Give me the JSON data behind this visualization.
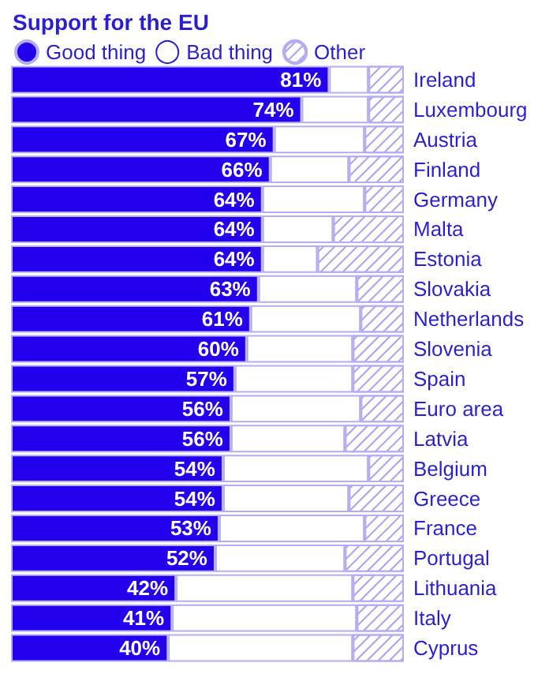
{
  "chart_data": {
    "type": "bar",
    "orientation": "horizontal",
    "stacked": true,
    "title": "Support for the EU",
    "legend": "top left",
    "tick_labels": "y",
    "categories": [
      "Ireland",
      "Luxembourg",
      "Austria",
      "Finland",
      "Germany",
      "Malta",
      "Estonia",
      "Slovakia",
      "Netherlands",
      "Slovenia",
      "Spain",
      "Euro area",
      "Latvia",
      "Belgium",
      "Greece",
      "France",
      "Portugal",
      "Lithuania",
      "Italy",
      "Cyprus"
    ],
    "xlim": [
      0,
      100
    ],
    "series": [
      {
        "name": "Good thing",
        "color": "#2200ee",
        "values": [
          81,
          74,
          67,
          66,
          64,
          64,
          64,
          63,
          61,
          60,
          57,
          56,
          56,
          54,
          54,
          53,
          52,
          42,
          41,
          40
        ],
        "value_labels": [
          "81%",
          "74%",
          "67%",
          "66%",
          "64%",
          "64%",
          "64%",
          "63%",
          "61%",
          "60%",
          "57%",
          "56%",
          "56%",
          "54%",
          "54%",
          "53%",
          "52%",
          "42%",
          "41%",
          "40%"
        ]
      },
      {
        "name": "Bad thing",
        "color": "#ffffff",
        "values": [
          10,
          17,
          23,
          20,
          26,
          18,
          14,
          25,
          28,
          27,
          30,
          33,
          29,
          37,
          32,
          37,
          33,
          45,
          47,
          47
        ]
      },
      {
        "name": "Other",
        "color": "#a8a0f0",
        "values": [
          9,
          9,
          10,
          14,
          10,
          18,
          22,
          12,
          11,
          13,
          13,
          11,
          15,
          9,
          14,
          10,
          15,
          13,
          12,
          13
        ]
      }
    ]
  }
}
